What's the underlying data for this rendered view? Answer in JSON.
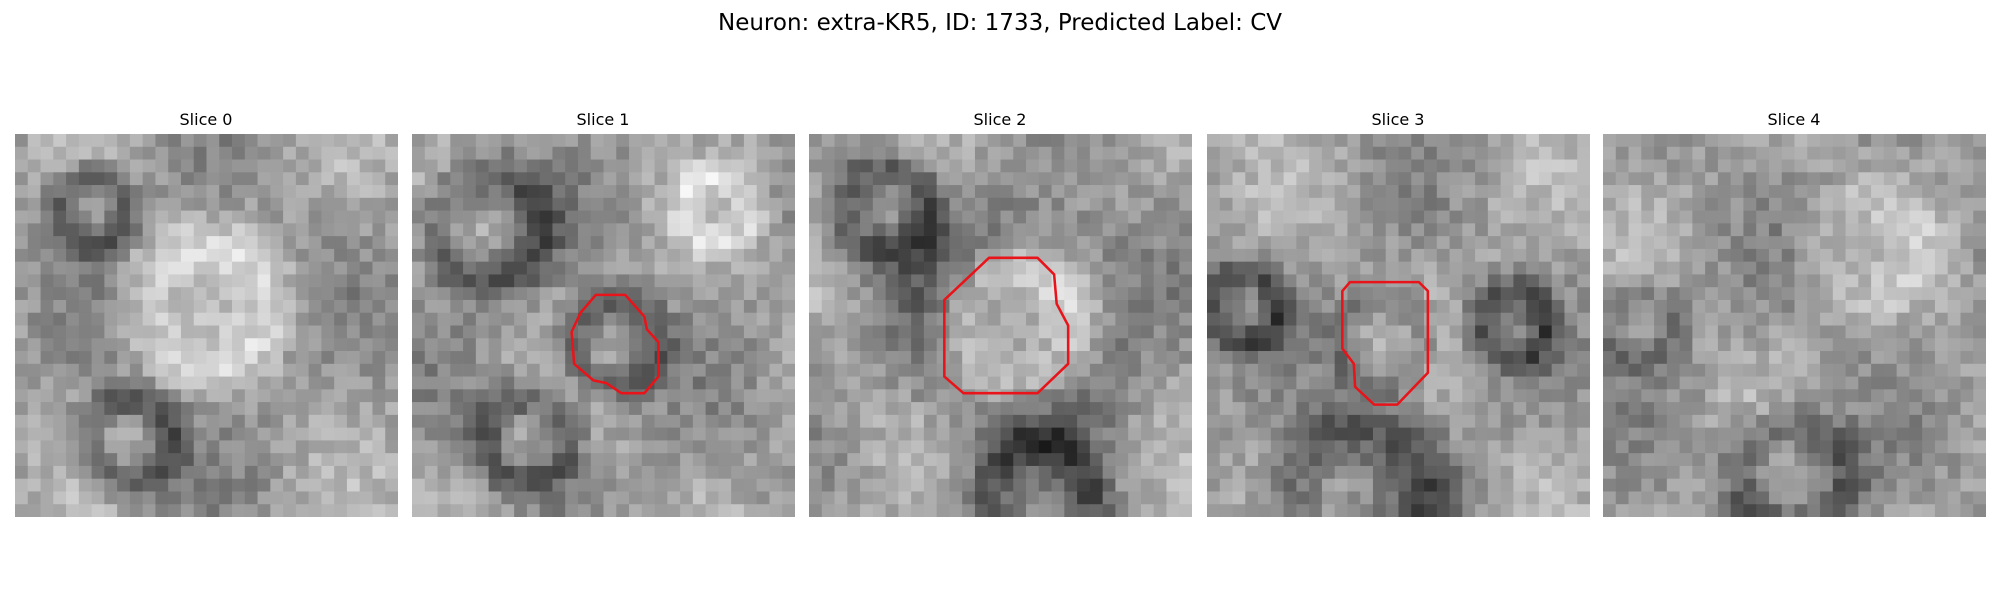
{
  "header": {
    "title": "Neuron: extra-KR5, ID: 1733, Predicted Label: CV"
  },
  "panels": [
    {
      "title": "Slice 0"
    },
    {
      "title": "Slice 1"
    },
    {
      "title": "Slice 2"
    },
    {
      "title": "Slice 3"
    },
    {
      "title": "Slice 4"
    }
  ]
}
